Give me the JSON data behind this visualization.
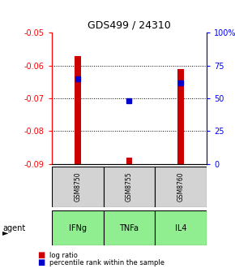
{
  "title": "GDS499 / 24310",
  "categories": [
    "GSM8750",
    "GSM8755",
    "GSM8760"
  ],
  "agents": [
    "IFNg",
    "TNFa",
    "IL4"
  ],
  "log_ratios": [
    -0.057,
    -0.088,
    -0.061
  ],
  "percentile_ranks": [
    65,
    48,
    62
  ],
  "ylim_left": [
    -0.09,
    -0.05
  ],
  "ylim_right": [
    0,
    100
  ],
  "yticks_left": [
    -0.09,
    -0.08,
    -0.07,
    -0.06,
    -0.05
  ],
  "yticks_right": [
    0,
    25,
    50,
    75,
    100
  ],
  "bar_color": "#cc0000",
  "blue_color": "#0000cc",
  "bar_width": 0.12,
  "sample_bg": "#d3d3d3",
  "agent_bg": "#90EE90",
  "legend_log_label": "log ratio",
  "legend_pct_label": "percentile rank within the sample"
}
